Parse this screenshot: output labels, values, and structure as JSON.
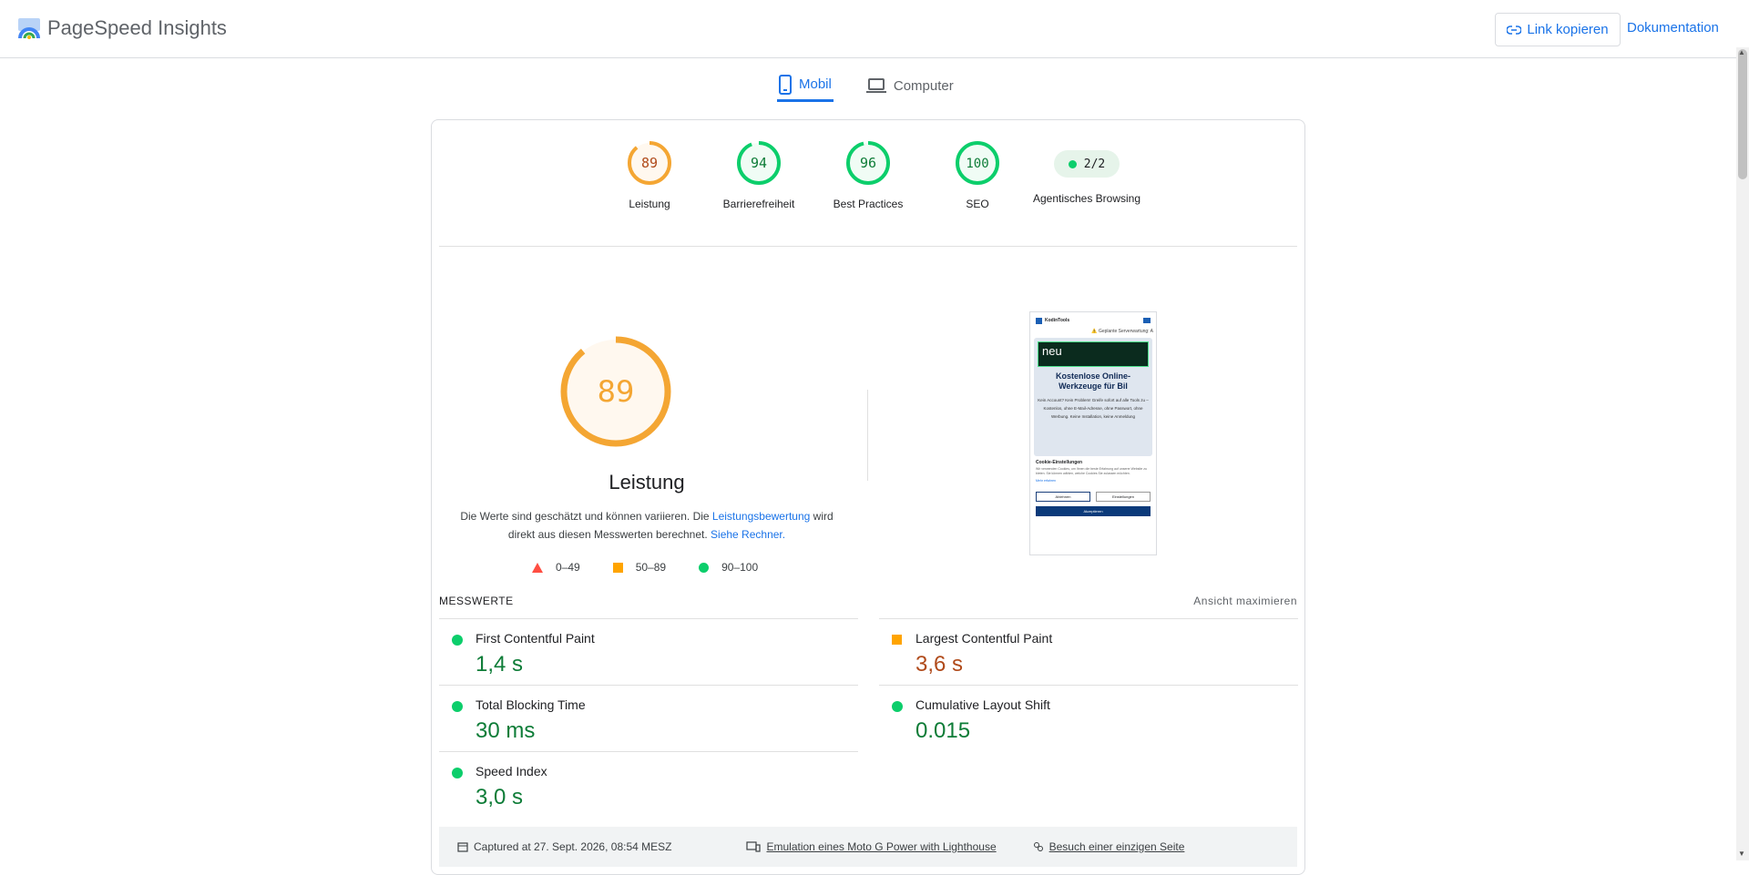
{
  "header": {
    "app_name": "PageSpeed Insights",
    "copy_link": "Link kopieren",
    "docs": "Dokumentation"
  },
  "tabs": [
    {
      "label": "Mobil",
      "active": true
    },
    {
      "label": "Computer",
      "active": false
    }
  ],
  "categories": [
    {
      "score": "89",
      "label": "Leistung",
      "color": "#f4a633"
    },
    {
      "score": "94",
      "label": "Barrierefreiheit",
      "color": "#0cce6b"
    },
    {
      "score": "96",
      "label": "Best Practices",
      "color": "#0cce6b"
    },
    {
      "score": "100",
      "label": "SEO",
      "color": "#0cce6b"
    },
    {
      "score": "2/2",
      "label": "Agentisches Browsing",
      "color": "#0cce6b"
    }
  ],
  "performance": {
    "score": "89",
    "title": "Leistung",
    "desc_part1": "Die Werte sind geschätzt und können variieren. Die ",
    "desc_link1": "Leistungsbewertung",
    "desc_part2": " wird direkt aus diesen Messwerten berechnet. ",
    "desc_link2": "Siehe Rechner."
  },
  "legend": [
    {
      "range": "0–49",
      "color": "#ff4e42"
    },
    {
      "range": "50–89",
      "color": "#ffa400"
    },
    {
      "range": "90–100",
      "color": "#0cce6b"
    }
  ],
  "metrics_section": {
    "title": "MESSWERTE",
    "maximize": "Ansicht maximieren"
  },
  "metrics": [
    {
      "name": "First Contentful Paint",
      "value": "1,4 s",
      "status": "good"
    },
    {
      "name": "Largest Contentful Paint",
      "value": "3,6 s",
      "status": "average"
    },
    {
      "name": "Total Blocking Time",
      "value": "30 ms",
      "status": "good"
    },
    {
      "name": "Cumulative Layout Shift",
      "value": "0.015",
      "status": "good"
    },
    {
      "name": "Speed Index",
      "value": "3,0 s",
      "status": "good"
    }
  ],
  "screenshot": {
    "site_name": "KodinTools",
    "notice": "⚠️ Geplante Serverwartung: A",
    "hero_badge": "neu",
    "hero_title": "Kostenlose Online-Werkzeuge für Bil",
    "hero_text": "Kein Account? Kein Problem! Greife sofort auf alle Tools zu – Kostenlos, ohne E-Mail-Adresse, ohne Passwort, ohne Werbung. Keine Installation, keine Anmeldung",
    "cookie_title": "Cookie-Einstellungen",
    "cookie_text": "Wir verwenden Cookies, um Ihnen die beste Erfahrung auf unserer Website zu bieten. Sie können wählen, welche Cookies Sie zulassen möchten.",
    "cookie_link": "Mehr erfahren",
    "btn_reject": "Ablehnen",
    "btn_settings": "Einstellungen",
    "btn_accept": "Akzeptieren"
  },
  "footer": {
    "captured": "Captured at 27. Sept. 2026, 08:54 MESZ",
    "emulation": "Emulation eines Moto G Power with Lighthouse",
    "visit": "Besuch einer einzigen Seite"
  },
  "colors": {
    "accent": "#1a73e8",
    "pass": "#0cce6b",
    "average": "#ffa400",
    "fail": "#ff4e42"
  }
}
